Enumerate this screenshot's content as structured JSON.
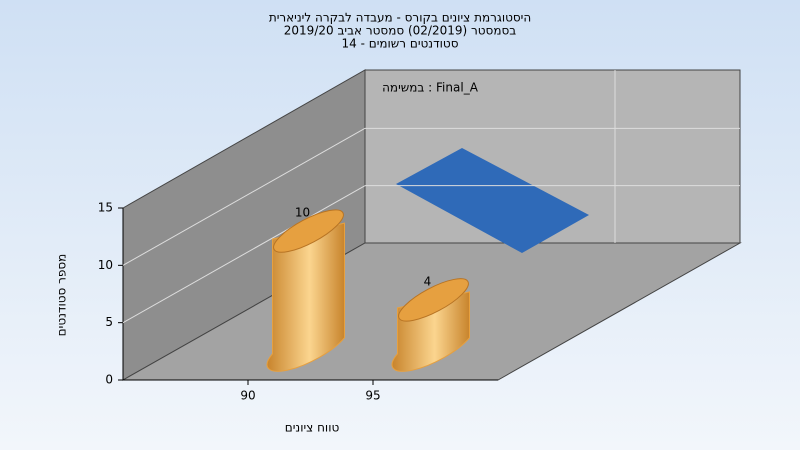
{
  "chart_data": {
    "type": "bar3d",
    "title": "היסטוגרמת ציונים בקורס - מעבדה לבקרה ליניארית",
    "subtitle": [
      "בסמסטר  (02/2019)  סמסטר אביב 2019/20",
      "סטודנטים רשומים - 14"
    ],
    "x_label": "טווח ציונים",
    "y_label": "מספר סטודנטים",
    "categories": [
      "90",
      "95"
    ],
    "series": [
      {
        "name": "במשימה : Final_A",
        "color": "#e6a040",
        "values": [
          10,
          4
        ]
      }
    ],
    "ylim": [
      0,
      15
    ],
    "yticks": [
      0,
      5,
      10,
      15
    ],
    "grid": true
  }
}
